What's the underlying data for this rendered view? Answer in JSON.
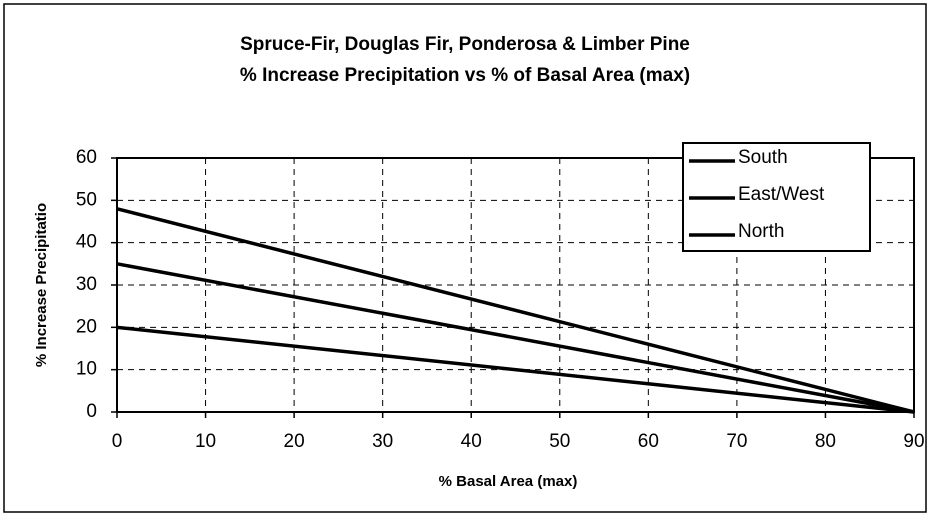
{
  "chart_data": {
    "type": "line",
    "title": "Spruce-Fir, Douglas Fir, Ponderosa & Limber Pine",
    "subtitle": "% Increase Precipitation vs % of Basal Area (max)",
    "x_label": "% Basal Area (max)",
    "y_label": "% Increase Precipitatio",
    "x": [
      0,
      90
    ],
    "series": [
      {
        "name": "South",
        "color": "#000000",
        "values": [
          48,
          0
        ]
      },
      {
        "name": "East/West",
        "color": "#000000",
        "values": [
          35,
          0
        ]
      },
      {
        "name": "North",
        "color": "#000000",
        "values": [
          20,
          0
        ]
      }
    ],
    "xlim": [
      0,
      90
    ],
    "xticks": [
      0,
      10,
      20,
      30,
      40,
      50,
      60,
      70,
      80,
      90
    ],
    "ylim": [
      0,
      60
    ],
    "yticks": [
      0,
      10,
      20,
      30,
      40,
      50,
      60
    ],
    "grid": true,
    "legend": "upper right"
  }
}
